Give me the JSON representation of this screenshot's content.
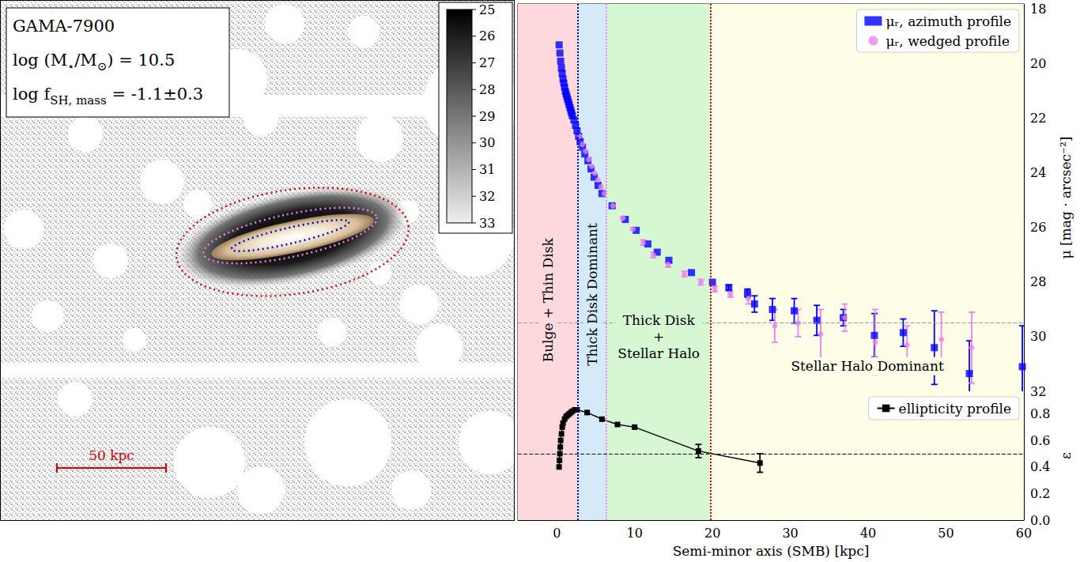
{
  "chart_data": [
    {
      "type": "scatter",
      "y_label": "μ [mag · arcsec⁻²]",
      "xlim": [
        -5,
        60
      ],
      "xticks": [
        0,
        10,
        20,
        30,
        40,
        50,
        60
      ],
      "ylim": [
        32,
        17.8
      ],
      "yticks": [
        18,
        20,
        22,
        24,
        26,
        28,
        30,
        32
      ],
      "tick_labels": "y",
      "grid": false,
      "legend": "upper right",
      "series": [
        {
          "name": "μᵣ, azimuth profile",
          "color": "#0000ff",
          "marker": "square",
          "x": [
            0.3,
            0.4,
            0.5,
            0.6,
            0.7,
            0.8,
            0.9,
            1.0,
            1.1,
            1.2,
            1.3,
            1.4,
            1.5,
            1.6,
            1.7,
            1.8,
            1.9,
            2.0,
            2.2,
            2.4,
            2.6,
            2.8,
            3.0,
            3.3,
            3.6,
            4.0,
            4.4,
            4.8,
            5.3,
            5.8,
            7.1,
            8.8,
            10.2,
            11.7,
            12.9,
            14.4,
            17.3,
            20.0,
            22.1,
            24.5,
            25.4,
            27.7,
            30.5,
            33.4,
            36.8,
            40.8,
            44.5,
            48.5,
            53.0,
            59.8
          ],
          "values": [
            19.3,
            19.6,
            19.9,
            20.15,
            20.35,
            20.55,
            20.7,
            20.85,
            21.0,
            21.1,
            21.2,
            21.3,
            21.4,
            21.5,
            21.6,
            21.7,
            21.8,
            21.9,
            22.05,
            22.25,
            22.45,
            22.65,
            22.85,
            23.05,
            23.3,
            23.55,
            23.85,
            24.15,
            24.45,
            24.75,
            25.2,
            25.7,
            26.1,
            26.6,
            26.9,
            27.2,
            27.65,
            28.0,
            28.2,
            28.4,
            28.8,
            29.0,
            29.05,
            29.4,
            29.3,
            29.95,
            29.85,
            30.4,
            31.35,
            31.1
          ],
          "errors": [
            null,
            null,
            null,
            null,
            null,
            null,
            null,
            null,
            null,
            null,
            null,
            null,
            null,
            null,
            null,
            null,
            null,
            null,
            null,
            null,
            null,
            null,
            null,
            null,
            null,
            null,
            null,
            null,
            null,
            null,
            null,
            null,
            null,
            null,
            null,
            null,
            null,
            null,
            0.1,
            0.15,
            0.3,
            0.4,
            0.45,
            0.55,
            0.3,
            0.8,
            0.5,
            1.35,
            1.2,
            1.5
          ]
        },
        {
          "name": "μᵣ, wedged profile",
          "color": "#ee82ee",
          "marker": "circle",
          "x": [
            2.9,
            3.3,
            3.7,
            4.1,
            4.5,
            4.9,
            5.3,
            5.7,
            6.1,
            7.2,
            8.5,
            9.8,
            11.1,
            12.4,
            14.3,
            16.4,
            18.5,
            20.3,
            22.3,
            24.6,
            28.0,
            31.0,
            33.9,
            37.0,
            40.9,
            45.0,
            49.4,
            53.3
          ],
          "values": [
            22.65,
            22.95,
            23.2,
            23.5,
            23.75,
            24.0,
            24.25,
            24.5,
            24.75,
            25.2,
            25.65,
            26.05,
            26.55,
            27.0,
            27.35,
            27.7,
            28.0,
            28.25,
            28.45,
            28.6,
            29.6,
            29.5,
            29.9,
            29.3,
            30.2,
            30.3,
            30.1,
            30.4
          ],
          "errors": [
            null,
            null,
            null,
            null,
            null,
            null,
            null,
            null,
            null,
            0.05,
            0.05,
            0.05,
            0.1,
            0.1,
            0.1,
            0.1,
            0.1,
            0.1,
            0.1,
            0.2,
            0.6,
            0.5,
            0.9,
            0.5,
            1.2,
            0.7,
            1.0,
            1.3
          ]
        }
      ],
      "regions": [
        {
          "from": -5,
          "to": 2.7,
          "color": "#fdd9de",
          "label": "Bulge + Thin Disk"
        },
        {
          "from": 2.7,
          "to": 6.4,
          "color": "#d5eaf9",
          "label": "Thick Disk Dominant"
        },
        {
          "from": 6.4,
          "to": 19.8,
          "color": "#d5f7d2",
          "label": "Thick Disk\n+\nStellar Halo"
        },
        {
          "from": 19.8,
          "to": 60,
          "color": "#fefde7",
          "label": "Stellar Halo Dominant"
        }
      ],
      "boundaries": [
        {
          "x": 2.7,
          "color": "#0000dd",
          "line_style": "dotted"
        },
        {
          "x": 6.4,
          "color": "#ee82ee",
          "line_style": "dotted"
        },
        {
          "x": 19.8,
          "color": "#dd0000",
          "line_style": "dotted"
        }
      ],
      "reference_line": {
        "y": 29.5,
        "color": "#999999",
        "line_style": "dashed"
      }
    },
    {
      "type": "line",
      "x_label": "Semi-minor axis (SMB) [kpc]",
      "y_label": "ε",
      "xlim": [
        -5,
        60
      ],
      "xticks": [
        0,
        10,
        20,
        30,
        40,
        50,
        60
      ],
      "ylim": [
        0,
        0.97
      ],
      "yticks": [
        {
          "value": 0,
          "label": "0.0"
        },
        0.2,
        0.4,
        0.6,
        0.8
      ],
      "grid": false,
      "legend": "upper right",
      "series": [
        {
          "name": "ellipticity profile",
          "color": "#000000",
          "marker": "square",
          "x": [
            0.3,
            0.35,
            0.4,
            0.45,
            0.5,
            0.6,
            0.7,
            0.8,
            1.0,
            1.2,
            1.4,
            1.6,
            1.8,
            2.0,
            2.3,
            2.6,
            3.9,
            5.8,
            7.8,
            10.0,
            18.2,
            26.1
          ],
          "values": [
            0.4,
            0.45,
            0.5,
            0.55,
            0.6,
            0.65,
            0.7,
            0.73,
            0.76,
            0.78,
            0.79,
            0.8,
            0.81,
            0.82,
            0.83,
            0.83,
            0.81,
            0.76,
            0.72,
            0.7,
            0.52,
            0.43
          ],
          "errors": [
            null,
            null,
            null,
            null,
            null,
            null,
            null,
            null,
            null,
            null,
            null,
            null,
            null,
            null,
            null,
            null,
            null,
            null,
            null,
            null,
            0.05,
            0.07
          ]
        }
      ],
      "regions": [
        {
          "from": -5,
          "to": 2.7,
          "color": "#fdd9de"
        },
        {
          "from": 2.7,
          "to": 6.4,
          "color": "#d5eaf9"
        },
        {
          "from": 6.4,
          "to": 19.8,
          "color": "#d5f7d2"
        },
        {
          "from": 19.8,
          "to": 60,
          "color": "#fefde7"
        }
      ],
      "boundaries": [
        {
          "x": 2.7,
          "color": "#0000dd",
          "line_style": "dotted"
        },
        {
          "x": 6.4,
          "color": "#ee82ee",
          "line_style": "dotted"
        },
        {
          "x": 19.8,
          "color": "#dd0000",
          "line_style": "dotted"
        }
      ],
      "reference_line": {
        "y": 0.5,
        "color": "#000000",
        "line_style": "dashed"
      }
    }
  ],
  "image_panel": {
    "info_lines": [
      [
        {
          "text": "GAMA-7900"
        }
      ],
      [
        {
          "text": "log (M"
        },
        {
          "text": "⋆",
          "sub": true
        },
        {
          "text": "/M"
        },
        {
          "text": "⊙",
          "sub": true
        },
        {
          "text": ") = 10.5"
        }
      ],
      [
        {
          "text": "log f"
        },
        {
          "text": "SH, mass",
          "sub": true
        },
        {
          "text": " = -1.1±0.3"
        }
      ]
    ],
    "colorbar": {
      "range": [
        25,
        33
      ],
      "ticks": [
        25,
        26,
        27,
        28,
        29,
        30,
        31,
        32,
        33
      ]
    },
    "scale_bar": {
      "label": "50 kpc"
    }
  }
}
